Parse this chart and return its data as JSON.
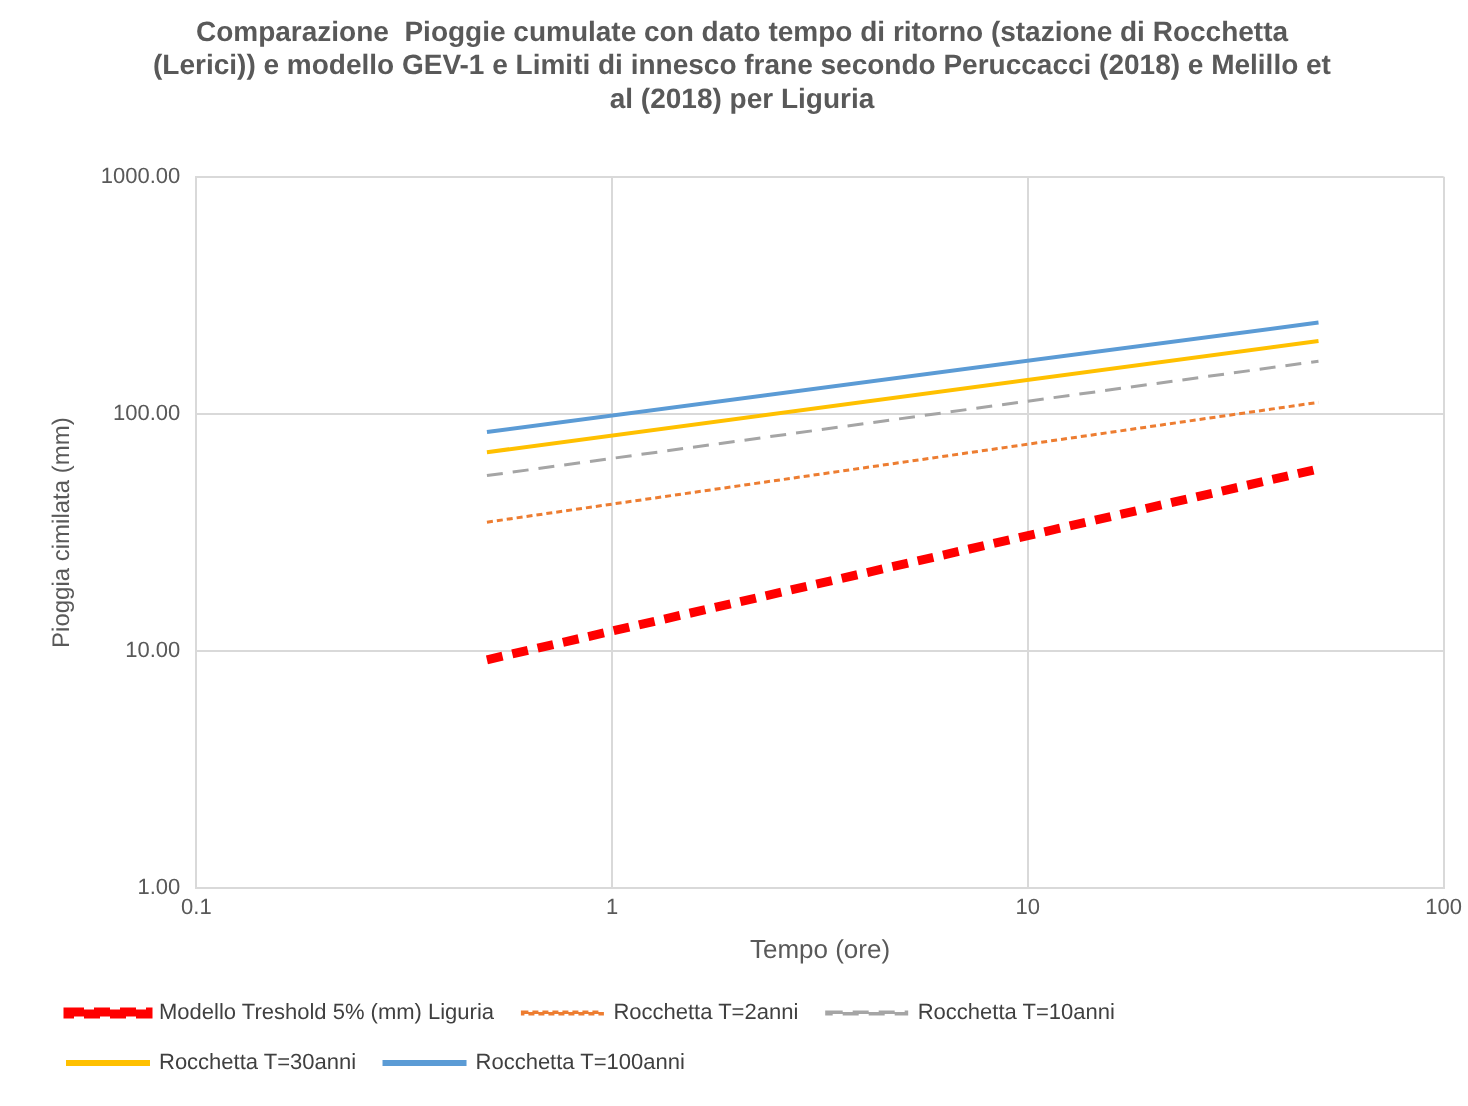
{
  "chart_data": {
    "type": "line",
    "title": "Comparazione  Pioggie cumulate con dato tempo di ritorno (stazione di Rocchetta (Lerici)) e modello GEV-1 e Limiti di innesco frane secondo Peruccacci (2018) e Melillo et al (2018) per Liguria",
    "xlabel": "Tempo (ore)",
    "ylabel": "Pioggia cimilata (mm)",
    "x": [
      0.5,
      50
    ],
    "series": [
      {
        "name": "Modello Treshold 5% (mm) Liguria",
        "color": "#ff0000",
        "values": [
          9.2,
          58.7
        ],
        "line_style": "dashed"
      },
      {
        "name": "Rocchetta T=2anni",
        "color": "#ed7d31",
        "values": [
          35,
          112
        ],
        "line_style": "dotted"
      },
      {
        "name": "Rocchetta T=10anni",
        "color": "#a5a5a5",
        "values": [
          55,
          167
        ],
        "line_style": "dashed"
      },
      {
        "name": "Rocchetta T=30anni",
        "color": "#ffc000",
        "values": [
          69,
          203
        ],
        "line_style": "solid"
      },
      {
        "name": "Rocchetta T=100anni",
        "color": "#5b9bd5",
        "values": [
          84,
          243
        ],
        "line_style": "solid"
      }
    ],
    "log": "xy",
    "xlim": [
      0.1,
      100
    ],
    "xticks": [
      0.1,
      1,
      10,
      100
    ],
    "ylim": [
      1,
      1000
    ],
    "yticks": [
      {
        "value": 1,
        "label": "1.00"
      },
      {
        "value": 10,
        "label": "10.00"
      },
      {
        "value": 100,
        "label": "100.00"
      },
      {
        "value": 1000,
        "label": "1000.00"
      }
    ],
    "grid": true,
    "legend": "bottom",
    "marker": "none"
  }
}
